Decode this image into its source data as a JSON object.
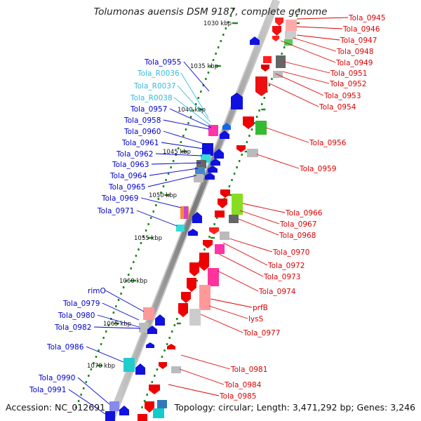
{
  "title": "Tolumonas auensis DSM 9187, complete genome",
  "accession": "Accession: NC_012691",
  "topology": "Topology: circular; Length: 3,471,292 bp; Genes: 3,246",
  "ticks": [
    {
      "label": "1030 kbp",
      "kbp": 1030
    },
    {
      "label": "1035 kbp",
      "kbp": 1035
    },
    {
      "label": "1040 kbp",
      "kbp": 1040
    },
    {
      "label": "1045 kbp",
      "kbp": 1045
    },
    {
      "label": "1050 kbp",
      "kbp": 1050
    },
    {
      "label": "1055 kbp",
      "kbp": 1055
    },
    {
      "label": "1060 kbp",
      "kbp": 1060
    },
    {
      "label": "1065 kbp",
      "kbp": 1065
    },
    {
      "label": "1070 kbp",
      "kbp": 1070
    }
  ],
  "left_labels": [
    {
      "text": "Tola_0955",
      "color": "#0000cc"
    },
    {
      "text": "Tola_R0036",
      "color": "#33bbdd"
    },
    {
      "text": "Tola_R0037",
      "color": "#33bbdd"
    },
    {
      "text": "Tola_R0038",
      "color": "#33bbdd"
    },
    {
      "text": "Tola_0957",
      "color": "#0000cc"
    },
    {
      "text": "Tola_0958",
      "color": "#0000cc"
    },
    {
      "text": "Tola_0960",
      "color": "#0000cc"
    },
    {
      "text": "Tola_0961",
      "color": "#0000cc"
    },
    {
      "text": "Tola_0962",
      "color": "#0000cc"
    },
    {
      "text": "Tola_0963",
      "color": "#0000cc"
    },
    {
      "text": "Tola_0964",
      "color": "#0000cc"
    },
    {
      "text": "Tola_0965",
      "color": "#0000cc"
    },
    {
      "text": "Tola_0969",
      "color": "#0000cc"
    },
    {
      "text": "Tola_0971",
      "color": "#0000cc"
    },
    {
      "text": "rimO",
      "color": "#0000cc"
    },
    {
      "text": "Tola_0979",
      "color": "#0000cc"
    },
    {
      "text": "Tola_0980",
      "color": "#0000cc"
    },
    {
      "text": "Tola_0982",
      "color": "#0000cc"
    },
    {
      "text": "Tola_0986",
      "color": "#0000cc"
    },
    {
      "text": "Tola_0990",
      "color": "#0000cc"
    },
    {
      "text": "Tola_0991",
      "color": "#0000cc"
    }
  ],
  "right_labels": [
    {
      "text": "Tola_0945",
      "color": "#dd0000"
    },
    {
      "text": "Tola_0946",
      "color": "#dd0000"
    },
    {
      "text": "Tola_0947",
      "color": "#dd0000"
    },
    {
      "text": "Tola_0948",
      "color": "#dd0000"
    },
    {
      "text": "Tola_0949",
      "color": "#dd0000"
    },
    {
      "text": "Tola_0951",
      "color": "#dd0000"
    },
    {
      "text": "Tola_0952",
      "color": "#dd0000"
    },
    {
      "text": "Tola_0953",
      "color": "#dd0000"
    },
    {
      "text": "Tola_0954",
      "color": "#dd0000"
    },
    {
      "text": "Tola_0956",
      "color": "#dd0000"
    },
    {
      "text": "Tola_0959",
      "color": "#dd0000"
    },
    {
      "text": "Tola_0966",
      "color": "#dd0000"
    },
    {
      "text": "Tola_0967",
      "color": "#dd0000"
    },
    {
      "text": "Tola_0968",
      "color": "#dd0000"
    },
    {
      "text": "Tola_0970",
      "color": "#dd0000"
    },
    {
      "text": "Tola_0972",
      "color": "#dd0000"
    },
    {
      "text": "Tola_0973",
      "color": "#dd0000"
    },
    {
      "text": "Tola_0974",
      "color": "#dd0000"
    },
    {
      "text": "prfB",
      "color": "#dd0000"
    },
    {
      "text": "lysS",
      "color": "#dd0000"
    },
    {
      "text": "Tola_0977",
      "color": "#dd0000"
    },
    {
      "text": "Tola_0981",
      "color": "#dd0000"
    },
    {
      "text": "Tola_0984",
      "color": "#dd0000"
    },
    {
      "text": "Tola_0985",
      "color": "#dd0000"
    }
  ],
  "colors": {
    "backbone": "#808080",
    "forward_strand": "#dd0000",
    "reverse_strand": "#0000dd",
    "rna": "#33ccee",
    "tick_dots": "#228822"
  }
}
